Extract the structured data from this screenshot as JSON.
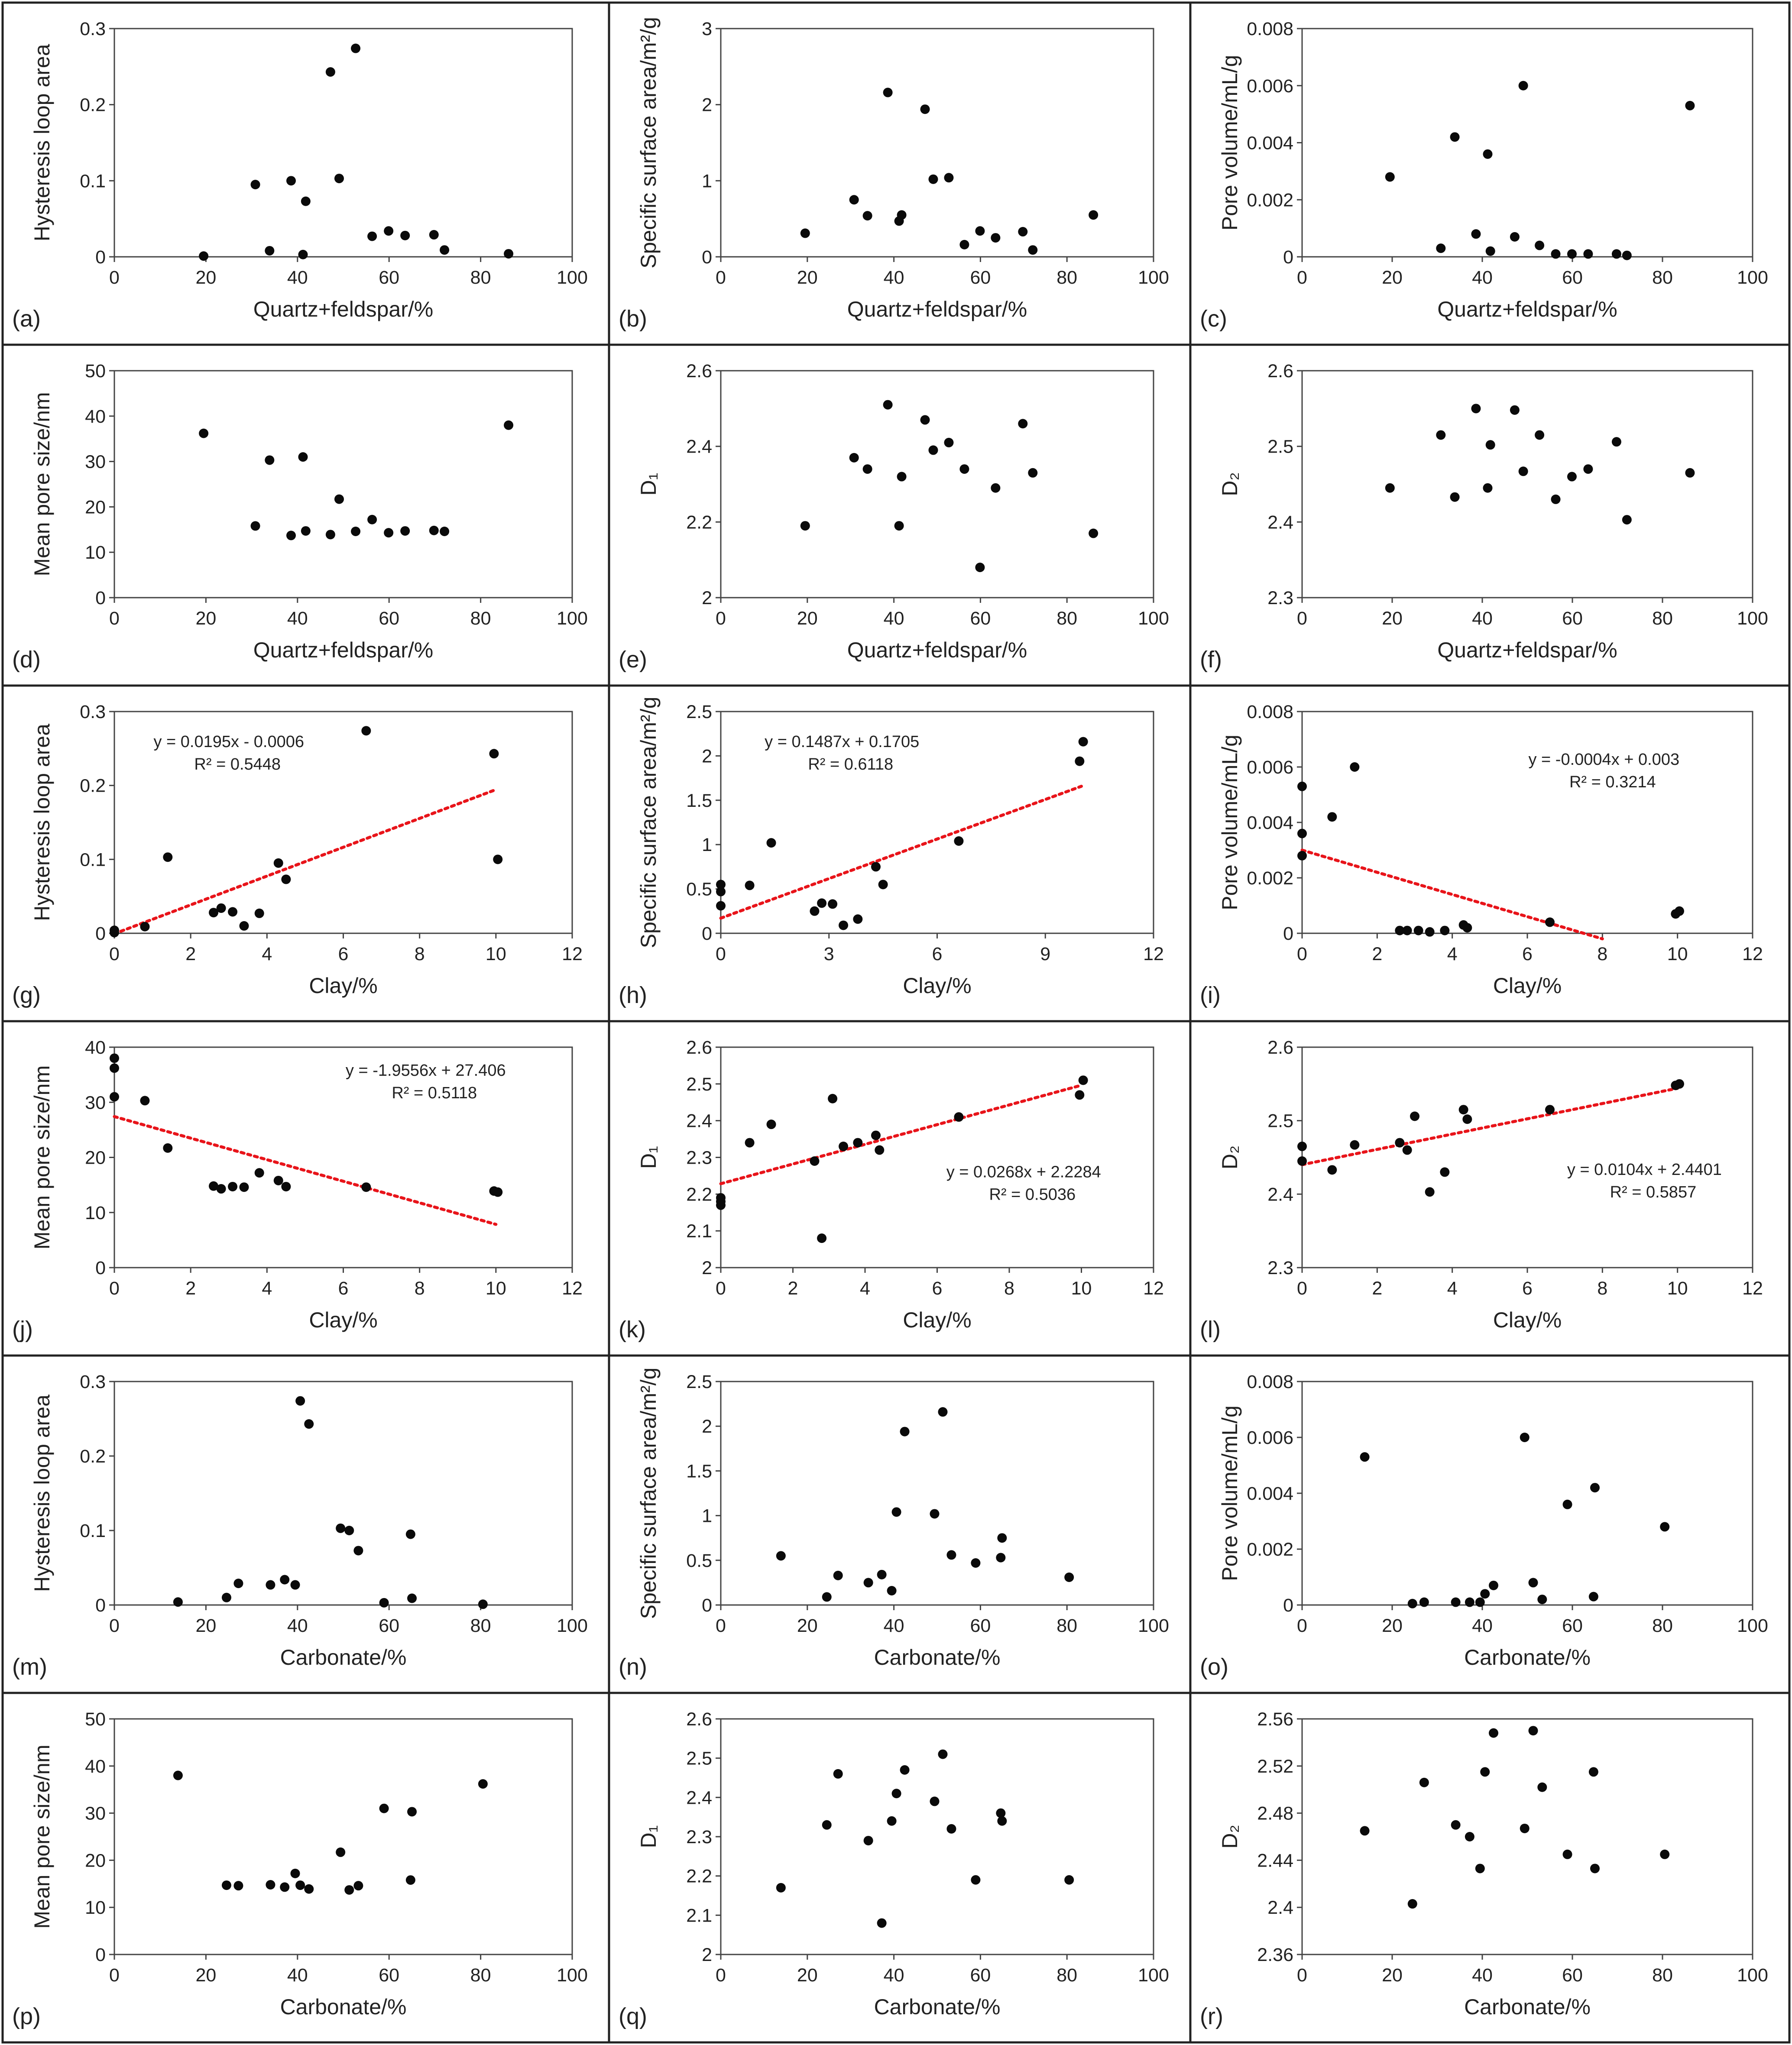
{
  "figure": {
    "panels": [
      {
        "id": "a",
        "label": "(a)"
      },
      {
        "id": "b",
        "label": "(b)"
      },
      {
        "id": "c",
        "label": "(c)"
      },
      {
        "id": "d",
        "label": "(d)"
      },
      {
        "id": "e",
        "label": "(e)"
      },
      {
        "id": "f",
        "label": "(f)"
      },
      {
        "id": "g",
        "label": "(g)"
      },
      {
        "id": "h",
        "label": "(h)"
      },
      {
        "id": "i",
        "label": "(i)"
      },
      {
        "id": "j",
        "label": "(j)"
      },
      {
        "id": "k",
        "label": "(k)"
      },
      {
        "id": "l",
        "label": "(l)"
      },
      {
        "id": "m",
        "label": "(m)"
      },
      {
        "id": "n",
        "label": "(n)"
      },
      {
        "id": "o",
        "label": "(o)"
      },
      {
        "id": "p",
        "label": "(p)"
      },
      {
        "id": "q",
        "label": "(q)"
      },
      {
        "id": "r",
        "label": "(r)"
      }
    ]
  },
  "chart_data": [
    {
      "type": "scatter",
      "panel": "(a)",
      "xlabel": "Quartz+feldspar/%",
      "ylabel": "Hysteresis loop area",
      "xlim": [
        0,
        100
      ],
      "ylim": [
        0,
        0.3
      ],
      "xticks": [
        "0",
        "20",
        "40",
        "60",
        "80",
        "100"
      ],
      "yticks": [
        "0",
        "0.1",
        "0.2",
        "0.3"
      ],
      "x": [
        19.5,
        30.8,
        33.9,
        38.6,
        41.2,
        41.8,
        47.2,
        49.1,
        52.7,
        56.3,
        59.9,
        63.5,
        69.8,
        72.1,
        86.1
      ],
      "y": [
        0.001,
        0.095,
        0.008,
        0.1,
        0.003,
        0.073,
        0.243,
        0.103,
        0.274,
        0.027,
        0.034,
        0.028,
        0.029,
        0.009,
        0.004
      ],
      "fit": null,
      "equation": []
    },
    {
      "type": "scatter",
      "panel": "(b)",
      "xlabel": "Quartz+feldspar/%",
      "ylabel": "Specific surface area/m²/g",
      "xlim": [
        0,
        100
      ],
      "ylim": [
        0,
        3
      ],
      "xticks": [
        "0",
        "20",
        "40",
        "60",
        "80",
        "100"
      ],
      "yticks": [
        "0",
        "1",
        "2",
        "3"
      ],
      "x": [
        19.5,
        30.8,
        33.9,
        38.6,
        41.2,
        41.8,
        47.2,
        49.1,
        52.7,
        56.3,
        59.9,
        63.5,
        69.8,
        72.1,
        86.1
      ],
      "y": [
        0.31,
        0.75,
        0.54,
        2.16,
        0.47,
        0.55,
        1.94,
        1.02,
        1.04,
        0.16,
        0.34,
        0.25,
        0.33,
        0.09,
        0.55
      ],
      "fit": null,
      "equation": []
    },
    {
      "type": "scatter",
      "panel": "(c)",
      "xlabel": "Quartz+feldspar/%",
      "ylabel": "Pore volume/mL/g",
      "xlim": [
        0,
        100
      ],
      "ylim": [
        0,
        0.008
      ],
      "xticks": [
        "0",
        "20",
        "40",
        "60",
        "80",
        "100"
      ],
      "yticks": [
        "0",
        "0.002",
        "0.004",
        "0.006",
        "0.008"
      ],
      "x": [
        19.5,
        30.8,
        33.9,
        38.6,
        41.2,
        41.8,
        47.2,
        49.1,
        52.7,
        56.3,
        59.9,
        63.5,
        69.8,
        72.1,
        86.1
      ],
      "y": [
        0.0028,
        0.0003,
        0.0042,
        0.0008,
        0.0036,
        0.0002,
        0.0007,
        0.006,
        0.0004,
        0.0001,
        0.0001,
        0.0001,
        0.0001,
        5e-05,
        0.0053
      ],
      "fit": null,
      "equation": []
    },
    {
      "type": "scatter",
      "panel": "(d)",
      "xlabel": "Quartz+feldspar/%",
      "ylabel": "Mean pore size/nm",
      "xlim": [
        0,
        100
      ],
      "ylim": [
        0,
        50
      ],
      "xticks": [
        "0",
        "20",
        "40",
        "60",
        "80",
        "100"
      ],
      "yticks": [
        "0",
        "10",
        "20",
        "30",
        "40",
        "50"
      ],
      "x": [
        19.5,
        30.8,
        33.9,
        38.6,
        41.2,
        41.8,
        47.2,
        49.1,
        52.7,
        56.3,
        59.9,
        63.5,
        69.8,
        72.1,
        86.1
      ],
      "y": [
        36.2,
        15.8,
        30.3,
        13.7,
        31.0,
        14.7,
        13.9,
        21.7,
        14.6,
        17.2,
        14.3,
        14.7,
        14.8,
        14.6,
        38.0
      ],
      "fit": null,
      "equation": []
    },
    {
      "type": "scatter",
      "panel": "(e)",
      "xlabel": "Quartz+feldspar/%",
      "ylabel": "D₁",
      "xlim": [
        0,
        100
      ],
      "ylim": [
        2,
        2.6
      ],
      "xticks": [
        "0",
        "20",
        "40",
        "60",
        "80",
        "100"
      ],
      "yticks": [
        "2",
        "2.2",
        "2.4",
        "2.6"
      ],
      "x": [
        19.5,
        30.8,
        33.9,
        38.6,
        41.2,
        41.8,
        47.2,
        49.1,
        52.7,
        56.3,
        59.9,
        63.5,
        69.8,
        72.1,
        86.1
      ],
      "y": [
        2.19,
        2.37,
        2.34,
        2.51,
        2.19,
        2.32,
        2.47,
        2.39,
        2.41,
        2.34,
        2.08,
        2.29,
        2.46,
        2.33,
        2.17
      ],
      "fit": null,
      "equation": []
    },
    {
      "type": "scatter",
      "panel": "(f)",
      "xlabel": "Quartz+feldspar/%",
      "ylabel": "D₂",
      "xlim": [
        0,
        100
      ],
      "ylim": [
        2.3,
        2.6
      ],
      "xticks": [
        "0",
        "20",
        "40",
        "60",
        "80",
        "100"
      ],
      "yticks": [
        "2.3",
        "2.4",
        "2.5",
        "2.6"
      ],
      "x": [
        19.5,
        30.8,
        33.9,
        38.6,
        41.2,
        41.8,
        47.2,
        49.1,
        52.7,
        56.3,
        59.9,
        63.5,
        69.8,
        72.1,
        86.1
      ],
      "y": [
        2.445,
        2.515,
        2.433,
        2.55,
        2.445,
        2.502,
        2.548,
        2.467,
        2.515,
        2.43,
        2.46,
        2.47,
        2.506,
        2.403,
        2.465
      ],
      "fit": null,
      "equation": []
    },
    {
      "type": "scatter",
      "panel": "(g)",
      "xlabel": "Clay/%",
      "ylabel": "Hysteresis loop area",
      "xlim": [
        0,
        12
      ],
      "ylim": [
        0,
        0.3
      ],
      "xticks": [
        "0",
        "2",
        "4",
        "6",
        "8",
        "10",
        "12"
      ],
      "yticks": [
        "0",
        "0.1",
        "0.2",
        "0.3"
      ],
      "x": [
        0,
        0,
        0.8,
        1.4,
        2.6,
        2.8,
        3.1,
        3.4,
        3.8,
        4.3,
        4.5,
        6.6,
        9.95,
        10.05
      ],
      "y": [
        0.004,
        0.001,
        0.009,
        0.103,
        0.028,
        0.034,
        0.029,
        0.01,
        0.027,
        0.095,
        0.073,
        0.274,
        0.243,
        0.1
      ],
      "fit": {
        "slope": 0.0195,
        "intercept": -0.0006,
        "x": [
          0,
          10
        ]
      },
      "equation": [
        "y = 0.0195x - 0.0006",
        "R² = 0.5448"
      ]
    },
    {
      "type": "scatter",
      "panel": "(h)",
      "xlabel": "Clay/%",
      "ylabel": "Specific surface area/m²/g",
      "xlim": [
        0,
        12
      ],
      "ylim": [
        0,
        2.5
      ],
      "xticks": [
        "0",
        "3",
        "6",
        "9",
        "12"
      ],
      "yticks": [
        "0",
        "0.5",
        "1",
        "1.5",
        "2",
        "2.5"
      ],
      "x": [
        0,
        0,
        0,
        0.8,
        1.4,
        2.6,
        2.8,
        3.1,
        3.4,
        3.8,
        4.3,
        4.5,
        6.6,
        9.95,
        10.05
      ],
      "y": [
        0.55,
        0.47,
        0.31,
        0.54,
        1.02,
        0.25,
        0.34,
        0.33,
        0.09,
        0.16,
        0.75,
        0.55,
        1.04,
        1.94,
        2.16
      ],
      "fit": {
        "slope": 0.1487,
        "intercept": 0.1705,
        "x": [
          0,
          10
        ]
      },
      "equation": [
        "y = 0.1487x + 0.1705",
        "R² = 0.6118"
      ]
    },
    {
      "type": "scatter",
      "panel": "(i)",
      "xlabel": "Clay/%",
      "ylabel": "Pore volume/mL/g",
      "xlim": [
        0,
        12
      ],
      "ylim": [
        0,
        0.008
      ],
      "xticks": [
        "0",
        "2",
        "4",
        "6",
        "8",
        "10",
        "12"
      ],
      "yticks": [
        "0",
        "0.002",
        "0.004",
        "0.006",
        "0.008"
      ],
      "x": [
        0,
        0,
        0,
        0.8,
        1.4,
        2.6,
        2.8,
        3.1,
        3.4,
        3.8,
        4.3,
        4.4,
        6.6,
        9.95,
        10.05
      ],
      "y": [
        0.0053,
        0.0036,
        0.0028,
        0.0042,
        0.006,
        0.0001,
        0.0001,
        0.0001,
        5e-05,
        0.0001,
        0.0003,
        0.0002,
        0.0004,
        0.0007,
        0.0008
      ],
      "fit": {
        "slope": -0.0004,
        "intercept": 0.003,
        "x": [
          0,
          8
        ]
      },
      "equation": [
        "y = -0.0004x + 0.003",
        "R² = 0.3214"
      ]
    },
    {
      "type": "scatter",
      "panel": "(j)",
      "xlabel": "Clay/%",
      "ylabel": "Mean pore size/nm",
      "xlim": [
        0,
        12
      ],
      "ylim": [
        0,
        40
      ],
      "xticks": [
        "0",
        "2",
        "4",
        "6",
        "8",
        "10",
        "12"
      ],
      "yticks": [
        "0",
        "10",
        "20",
        "30",
        "40"
      ],
      "x": [
        0,
        0,
        0,
        0.8,
        1.4,
        2.6,
        2.8,
        3.1,
        3.4,
        3.8,
        4.3,
        4.5,
        6.6,
        9.95,
        10.05
      ],
      "y": [
        38.0,
        36.2,
        31.0,
        30.3,
        21.7,
        14.8,
        14.3,
        14.7,
        14.6,
        17.2,
        15.8,
        14.7,
        14.6,
        13.9,
        13.7
      ],
      "fit": {
        "slope": -1.9556,
        "intercept": 27.406,
        "x": [
          0,
          10
        ]
      },
      "equation": [
        "y = -1.9556x + 27.406",
        "R² = 0.5118"
      ]
    },
    {
      "type": "scatter",
      "panel": "(k)",
      "xlabel": "Clay/%",
      "ylabel": "D₁",
      "xlim": [
        0,
        12
      ],
      "ylim": [
        2,
        2.6
      ],
      "xticks": [
        "0",
        "2",
        "4",
        "6",
        "8",
        "10",
        "12"
      ],
      "yticks": [
        "2",
        "2.1",
        "2.2",
        "2.3",
        "2.4",
        "2.5",
        "2.6"
      ],
      "x": [
        0,
        0,
        0,
        0.8,
        1.4,
        2.6,
        2.8,
        3.1,
        3.4,
        3.8,
        4.3,
        4.4,
        6.6,
        9.95,
        10.05
      ],
      "y": [
        2.19,
        2.18,
        2.17,
        2.34,
        2.39,
        2.29,
        2.08,
        2.46,
        2.33,
        2.34,
        2.36,
        2.32,
        2.41,
        2.47,
        2.51
      ],
      "fit": {
        "slope": 0.0268,
        "intercept": 2.2284,
        "x": [
          0,
          10
        ]
      },
      "equation": [
        "y = 0.0268x + 2.2284",
        "R² = 0.5036"
      ]
    },
    {
      "type": "scatter",
      "panel": "(l)",
      "xlabel": "Clay/%",
      "ylabel": "D₂",
      "xlim": [
        0,
        12
      ],
      "ylim": [
        2.3,
        2.6
      ],
      "xticks": [
        "0",
        "2",
        "4",
        "6",
        "8",
        "10",
        "12"
      ],
      "yticks": [
        "2.3",
        "2.4",
        "2.5",
        "2.6"
      ],
      "x": [
        0,
        0,
        0.8,
        1.4,
        2.6,
        2.8,
        3.0,
        3.4,
        3.8,
        4.3,
        4.4,
        6.6,
        9.95,
        10.05
      ],
      "y": [
        2.465,
        2.445,
        2.433,
        2.467,
        2.47,
        2.46,
        2.506,
        2.403,
        2.43,
        2.515,
        2.502,
        2.515,
        2.548,
        2.55
      ],
      "fit": {
        "slope": 0.0104,
        "intercept": 2.4401,
        "x": [
          0,
          10
        ]
      },
      "equation": [
        "y = 0.0104x + 2.4401",
        "R² = 0.5857"
      ]
    },
    {
      "type": "scatter",
      "panel": "(m)",
      "xlabel": "Carbonate/%",
      "ylabel": "Hysteresis loop area",
      "xlim": [
        0,
        100
      ],
      "ylim": [
        0,
        0.3
      ],
      "xticks": [
        "0",
        "20",
        "40",
        "60",
        "80",
        "100"
      ],
      "yticks": [
        "0",
        "0.1",
        "0.2",
        "0.3"
      ],
      "x": [
        13.9,
        24.5,
        27.1,
        34.1,
        37.2,
        39.5,
        40.6,
        42.5,
        49.4,
        51.3,
        53.3,
        58.9,
        64.7,
        65.0,
        80.5
      ],
      "y": [
        0.004,
        0.01,
        0.029,
        0.027,
        0.034,
        0.027,
        0.274,
        0.243,
        0.103,
        0.1,
        0.073,
        0.003,
        0.095,
        0.009,
        0.001
      ],
      "fit": null,
      "equation": []
    },
    {
      "type": "scatter",
      "panel": "(n)",
      "xlabel": "Carbonate/%",
      "ylabel": "Specific surface area/m²/g",
      "xlim": [
        0,
        100
      ],
      "ylim": [
        0,
        2.5
      ],
      "xticks": [
        "0",
        "20",
        "40",
        "60",
        "80",
        "100"
      ],
      "yticks": [
        "0",
        "0.5",
        "1",
        "1.5",
        "2",
        "2.5"
      ],
      "x": [
        13.9,
        24.5,
        27.1,
        34.1,
        37.2,
        39.5,
        40.6,
        42.5,
        49.4,
        51.3,
        53.3,
        58.9,
        64.7,
        65.0,
        80.5
      ],
      "y": [
        0.55,
        0.09,
        0.33,
        0.25,
        0.34,
        0.16,
        1.04,
        1.94,
        1.02,
        2.16,
        0.56,
        0.47,
        0.53,
        0.75,
        0.31
      ],
      "fit": null,
      "equation": []
    },
    {
      "type": "scatter",
      "panel": "(o)",
      "xlabel": "Carbonate/%",
      "ylabel": "Pore volume/mL/g",
      "xlim": [
        0,
        100
      ],
      "ylim": [
        0,
        0.008
      ],
      "xticks": [
        "0",
        "20",
        "40",
        "60",
        "80",
        "100"
      ],
      "yticks": [
        "0",
        "0.002",
        "0.004",
        "0.006",
        "0.008"
      ],
      "x": [
        13.9,
        24.5,
        27.1,
        34.1,
        37.2,
        39.5,
        40.6,
        42.5,
        49.4,
        51.3,
        53.3,
        58.9,
        64.7,
        65.0,
        80.5
      ],
      "y": [
        0.0053,
        5e-05,
        0.0001,
        0.0001,
        0.0001,
        0.0001,
        0.0004,
        0.0007,
        0.006,
        0.0008,
        0.0002,
        0.0036,
        0.0003,
        0.0042,
        0.0028
      ],
      "fit": null,
      "equation": []
    },
    {
      "type": "scatter",
      "panel": "(p)",
      "xlabel": "Carbonate/%",
      "ylabel": "Mean pore size/nm",
      "xlim": [
        0,
        100
      ],
      "ylim": [
        0,
        50
      ],
      "xticks": [
        "0",
        "20",
        "40",
        "60",
        "80",
        "100"
      ],
      "yticks": [
        "0",
        "10",
        "20",
        "30",
        "40",
        "50"
      ],
      "x": [
        13.9,
        24.5,
        27.1,
        34.1,
        37.2,
        39.5,
        40.6,
        42.5,
        49.4,
        51.3,
        53.3,
        58.9,
        64.7,
        65.0,
        80.5
      ],
      "y": [
        38.0,
        14.7,
        14.6,
        14.8,
        14.3,
        17.2,
        14.7,
        13.9,
        21.7,
        13.7,
        14.6,
        31.0,
        15.8,
        30.3,
        36.2
      ],
      "fit": null,
      "equation": []
    },
    {
      "type": "scatter",
      "panel": "(q)",
      "xlabel": "Carbonate/%",
      "ylabel": "D₁",
      "xlim": [
        0,
        100
      ],
      "ylim": [
        2,
        2.6
      ],
      "xticks": [
        "0",
        "20",
        "40",
        "60",
        "80",
        "100"
      ],
      "yticks": [
        "2",
        "2.1",
        "2.2",
        "2.3",
        "2.4",
        "2.5",
        "2.6"
      ],
      "x": [
        13.9,
        24.5,
        27.1,
        34.1,
        37.2,
        39.5,
        40.6,
        42.5,
        49.4,
        51.3,
        53.3,
        58.9,
        64.7,
        65.0,
        80.5
      ],
      "y": [
        2.17,
        2.33,
        2.46,
        2.29,
        2.08,
        2.34,
        2.41,
        2.47,
        2.39,
        2.51,
        2.32,
        2.19,
        2.36,
        2.34,
        2.19
      ],
      "fit": null,
      "equation": []
    },
    {
      "type": "scatter",
      "panel": "(r)",
      "xlabel": "Carbonate/%",
      "ylabel": "D₂",
      "xlim": [
        0,
        100
      ],
      "ylim": [
        2.36,
        2.56
      ],
      "xticks": [
        "0",
        "20",
        "40",
        "60",
        "80",
        "100"
      ],
      "yticks": [
        "2.36",
        "2.4",
        "2.44",
        "2.48",
        "2.52",
        "2.56"
      ],
      "x": [
        13.9,
        24.5,
        27.1,
        34.1,
        37.2,
        39.5,
        40.6,
        42.5,
        49.4,
        51.3,
        53.3,
        58.9,
        64.7,
        65.0,
        80.5
      ],
      "y": [
        2.465,
        2.403,
        2.506,
        2.47,
        2.46,
        2.433,
        2.515,
        2.548,
        2.467,
        2.55,
        2.502,
        2.445,
        2.515,
        2.433,
        2.445
      ],
      "fit": null,
      "equation": []
    }
  ]
}
